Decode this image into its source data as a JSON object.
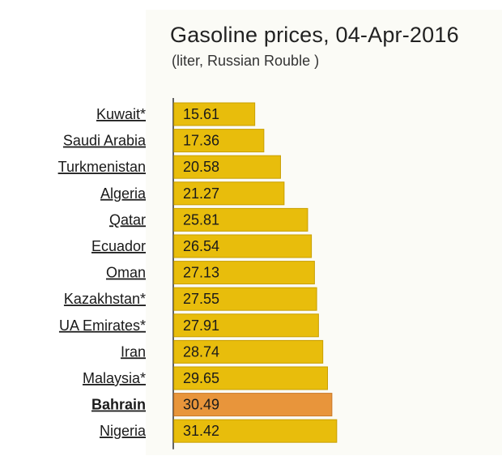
{
  "chart_data": {
    "type": "bar",
    "orientation": "horizontal",
    "title": "Gasoline prices, 04-Apr-2016",
    "subtitle": "(liter, Russian Rouble )",
    "categories": [
      "Kuwait*",
      "Saudi Arabia",
      "Turkmenistan",
      "Algeria",
      "Qatar",
      "Ecuador",
      "Oman",
      "Kazakhstan*",
      "UA Emirates*",
      "Iran",
      "Malaysia*",
      "Bahrain",
      "Nigeria"
    ],
    "values": [
      15.61,
      17.36,
      20.58,
      21.27,
      25.81,
      26.54,
      27.13,
      27.55,
      27.91,
      28.74,
      29.65,
      30.49,
      31.42
    ],
    "value_labels": [
      "15.61",
      "17.36",
      "20.58",
      "21.27",
      "25.81",
      "26.54",
      "27.13",
      "27.55",
      "27.91",
      "28.74",
      "29.65",
      "30.49",
      "31.42"
    ],
    "highlight_category": "Bahrain",
    "xlim": [
      0,
      40
    ],
    "grid": false,
    "legend": "none",
    "colors": {
      "bar": "#e8bd0c",
      "bar_border": "#c99f00",
      "highlight": "#e8953b",
      "highlight_border": "#c97828",
      "axis": "#333333"
    }
  }
}
